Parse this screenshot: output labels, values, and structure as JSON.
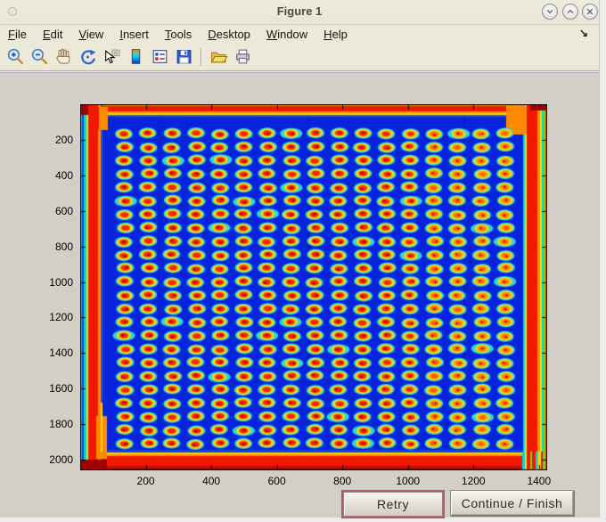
{
  "window": {
    "title": "Figure 1",
    "controls": [
      {
        "name": "minimize",
        "glyph": "chevron-down-icon"
      },
      {
        "name": "maximize",
        "glyph": "chevron-up-icon"
      },
      {
        "name": "close",
        "glyph": "x-icon"
      }
    ]
  },
  "menubar": {
    "items": [
      "File",
      "Edit",
      "View",
      "Insert",
      "Tools",
      "Desktop",
      "Window",
      "Help"
    ],
    "overflow_arrow": "↘"
  },
  "toolbar": {
    "groups": [
      [
        "zoom-in",
        "zoom-out",
        "pan",
        "rotate-3d",
        "data-cursor",
        "insert-colorbar",
        "insert-legend",
        "save-figure"
      ],
      [
        "open-file",
        "print-figure"
      ]
    ]
  },
  "figure": {
    "x_ticks": [
      200,
      400,
      600,
      800,
      1000,
      1200,
      1400
    ],
    "y_ticks": [
      200,
      400,
      600,
      800,
      1000,
      1200,
      1400,
      1600,
      1800,
      2000
    ],
    "x_range": [
      0,
      1425
    ],
    "y_range": [
      0,
      2060
    ],
    "image": {
      "type": "heatmap",
      "colormap": "jet",
      "grid_cols": 17,
      "grid_rows": 24,
      "grid_x0": 50,
      "grid_dx": 26.7,
      "grid_y0": 33,
      "grid_dy": 15.13,
      "background": "#0724dc",
      "spot_colors": {
        "halo": "#28d8e0",
        "body": "#ffdf00",
        "ring": "#ff9800",
        "core": "#f22800",
        "speck": "#a50d00"
      },
      "edge_colors": {
        "hot": "#f21800",
        "warm": "#ff8c00",
        "yellow": "#ffd800",
        "cyan": "#00d8e0",
        "dark": "#8f0000"
      }
    }
  },
  "actions": {
    "retry": "Retry",
    "continue": "Continue / Finish"
  }
}
